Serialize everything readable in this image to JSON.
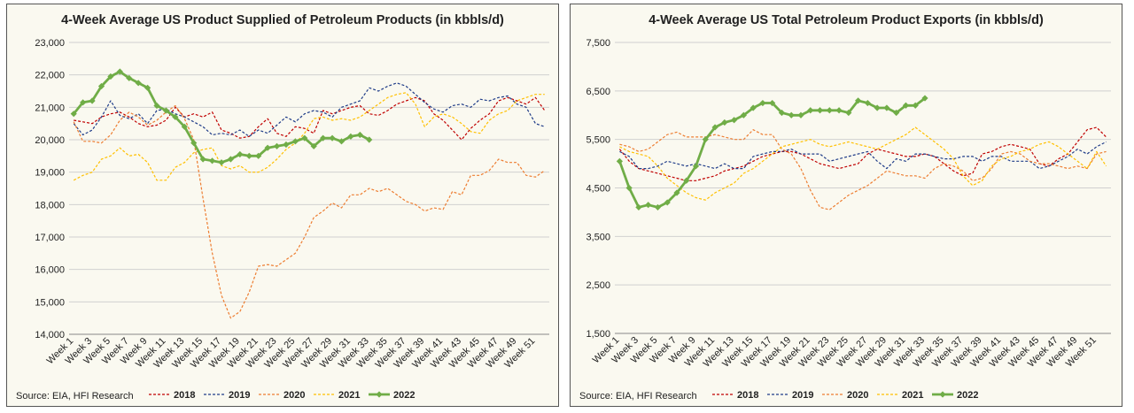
{
  "chart_data": [
    {
      "type": "line",
      "title": "4-Week Average US Product Supplied of Petroleum Products (in kbbls/d)",
      "source": "Source: EIA, HFI Research",
      "ylim": [
        14000,
        23000
      ],
      "yticks": [
        14000,
        15000,
        16000,
        17000,
        18000,
        19000,
        20000,
        21000,
        22000,
        23000
      ],
      "ytick_labels": [
        "14,000",
        "15,000",
        "16,000",
        "17,000",
        "18,000",
        "19,000",
        "20,000",
        "21,000",
        "22,000",
        "23,000"
      ],
      "x_tick_labels": [
        "Week 1",
        "Week 3",
        "Week 5",
        "Week 7",
        "Week 9",
        "Week 11",
        "Week 13",
        "Week 15",
        "Week 17",
        "Week 19",
        "Week 21",
        "Week 23",
        "Week 25",
        "Week 27",
        "Week 29",
        "Week 31",
        "Week 33",
        "Week 35",
        "Week 37",
        "Week 39",
        "Week 41",
        "Week 43",
        "Week 45",
        "Week 47",
        "Week 49",
        "Week 51"
      ],
      "grid": true,
      "legend": "bottom",
      "series": [
        {
          "name": "2018",
          "color": "#c00000",
          "dash": "3,2",
          "width": 1.2,
          "marker": false,
          "values": [
            20600,
            20550,
            20500,
            20700,
            20800,
            20850,
            20700,
            20500,
            20400,
            20450,
            20600,
            21000,
            20700,
            20800,
            20700,
            20850,
            20300,
            20200,
            20050,
            20100,
            20400,
            20650,
            20200,
            20100,
            20400,
            20350,
            20200,
            20900,
            20800,
            20900,
            21000,
            21050,
            20800,
            20750,
            20900,
            21100,
            21200,
            21300,
            21200,
            20800,
            20600,
            20300,
            20000,
            20350,
            20600,
            20800,
            21200,
            21300,
            21200,
            21100,
            21300,
            20900
          ]
        },
        {
          "name": "2019",
          "color": "#1f3c88",
          "dash": "3,2",
          "width": 1.2,
          "marker": false,
          "values": [
            20500,
            20150,
            20300,
            20700,
            21200,
            20750,
            20650,
            20800,
            20500,
            20900,
            20950,
            20800,
            20700,
            20550,
            20400,
            20150,
            20200,
            20150,
            20300,
            20100,
            20300,
            20200,
            20450,
            20700,
            20550,
            20800,
            20900,
            20850,
            20700,
            21000,
            21100,
            21200,
            21600,
            21500,
            21650,
            21750,
            21650,
            21400,
            21150,
            20950,
            20850,
            21050,
            21100,
            21000,
            21250,
            21200,
            21300,
            21350,
            21100,
            21000,
            20500,
            20400
          ]
        },
        {
          "name": "2020",
          "color": "#ed7d31",
          "dash": "3,2",
          "width": 1.2,
          "marker": false,
          "values": [
            20550,
            19950,
            19950,
            19900,
            20150,
            20600,
            20850,
            20700,
            20450,
            20600,
            20850,
            21050,
            20650,
            20000,
            18200,
            16500,
            15200,
            14500,
            14700,
            15300,
            16100,
            16150,
            16100,
            16300,
            16500,
            17000,
            17600,
            17800,
            18050,
            17900,
            18300,
            18300,
            18500,
            18400,
            18500,
            18300,
            18100,
            18000,
            17800,
            17900,
            17850,
            18400,
            18300,
            18900,
            18900,
            19050,
            19400,
            19300,
            19300,
            18900,
            18850,
            19050
          ]
        },
        {
          "name": "2021",
          "color": "#ffc000",
          "dash": "3,2",
          "width": 1.2,
          "marker": false,
          "values": [
            18750,
            18900,
            19000,
            19400,
            19500,
            19750,
            19500,
            19550,
            19300,
            18750,
            18750,
            19150,
            19300,
            19600,
            19700,
            19750,
            19200,
            19100,
            19200,
            19000,
            19000,
            19150,
            19400,
            19700,
            19900,
            20200,
            20650,
            20700,
            20600,
            20650,
            20600,
            20700,
            20900,
            21100,
            21300,
            21400,
            21450,
            21100,
            20400,
            20700,
            20800,
            20700,
            20500,
            20250,
            20200,
            20600,
            20800,
            20900,
            21200,
            21300,
            21400,
            21400
          ]
        },
        {
          "name": "2022",
          "color": "#70ad47",
          "dash": "",
          "width": 2.8,
          "marker": true,
          "values": [
            20800,
            21150,
            21200,
            21650,
            21950,
            22100,
            21900,
            21750,
            21600,
            21050,
            20900,
            20700,
            20400,
            19900,
            19400,
            19350,
            19300,
            19400,
            19550,
            19500,
            19500,
            19750,
            19800,
            19850,
            19950,
            20050,
            19800,
            20050,
            20050,
            19950,
            20100,
            20150,
            20000
          ]
        }
      ]
    },
    {
      "type": "line",
      "title": "4-Week Average US Total Petroleum Product Exports (in kbbls/d)",
      "source": "Source: EIA, HFI Research",
      "ylim": [
        1500,
        7500
      ],
      "yticks": [
        1500,
        2500,
        3500,
        4500,
        5500,
        6500,
        7500
      ],
      "ytick_labels": [
        "1,500",
        "2,500",
        "3,500",
        "4,500",
        "5,500",
        "6,500",
        "7,500"
      ],
      "x_tick_labels": [
        "Week 1",
        "Week 3",
        "Week 5",
        "Week 7",
        "Week 9",
        "Week 11",
        "Week 13",
        "Week 15",
        "Week 17",
        "Week 19",
        "Week 21",
        "Week 23",
        "Week 25",
        "Week 27",
        "Week 29",
        "Week 31",
        "Week 33",
        "Week 35",
        "Week 37",
        "Week 39",
        "Week 41",
        "Week 43",
        "Week 45",
        "Week 47",
        "Week 49",
        "Week 51"
      ],
      "grid": true,
      "legend": "bottom",
      "series": [
        {
          "name": "2018",
          "color": "#c00000",
          "dash": "3,2",
          "width": 1.2,
          "marker": false,
          "values": [
            5300,
            5050,
            4900,
            4850,
            4800,
            4750,
            4700,
            4650,
            4650,
            4700,
            4750,
            4850,
            4900,
            4950,
            5050,
            5150,
            5200,
            5250,
            5250,
            5200,
            5100,
            5000,
            4950,
            4900,
            4950,
            5000,
            5200,
            5300,
            5250,
            5200,
            5150,
            5150,
            5200,
            5150,
            5000,
            4850,
            4750,
            4800,
            5200,
            5250,
            5350,
            5400,
            5350,
            5300,
            5000,
            4950,
            5100,
            5200,
            5450,
            5700,
            5750,
            5550
          ]
        },
        {
          "name": "2019",
          "color": "#1f3c88",
          "dash": "3,2",
          "width": 1.2,
          "marker": false,
          "values": [
            5250,
            5150,
            4900,
            4900,
            4950,
            5050,
            5000,
            4950,
            5000,
            4950,
            4900,
            5000,
            4900,
            4900,
            5150,
            5200,
            5250,
            5250,
            5300,
            5200,
            5200,
            5200,
            5050,
            5100,
            5150,
            5200,
            5250,
            5050,
            4900,
            5100,
            5050,
            5200,
            5200,
            5150,
            5100,
            5100,
            5150,
            5150,
            5050,
            5150,
            5150,
            5050,
            5050,
            5050,
            4900,
            4950,
            5050,
            5150,
            5300,
            5200,
            5350,
            5450
          ]
        },
        {
          "name": "2020",
          "color": "#ed7d31",
          "dash": "3,2",
          "width": 1.2,
          "marker": false,
          "values": [
            5400,
            5350,
            5250,
            5300,
            5450,
            5600,
            5650,
            5550,
            5550,
            5550,
            5600,
            5550,
            5500,
            5500,
            5700,
            5600,
            5600,
            5300,
            5200,
            4900,
            4450,
            4100,
            4050,
            4200,
            4350,
            4450,
            4550,
            4700,
            4850,
            4800,
            4750,
            4750,
            4700,
            4900,
            5000,
            4950,
            4850,
            4650,
            4700,
            4900,
            5200,
            5250,
            5200,
            5050,
            5000,
            5000,
            4950,
            4900,
            4950,
            4900,
            5200,
            5250
          ]
        },
        {
          "name": "2021",
          "color": "#ffc000",
          "dash": "3,2",
          "width": 1.2,
          "marker": false,
          "values": [
            5350,
            5250,
            5200,
            5150,
            4950,
            4700,
            4550,
            4400,
            4300,
            4250,
            4400,
            4500,
            4600,
            4800,
            4900,
            5050,
            5200,
            5350,
            5400,
            5450,
            5500,
            5400,
            5350,
            5400,
            5450,
            5400,
            5350,
            5300,
            5400,
            5500,
            5600,
            5750,
            5600,
            5450,
            5300,
            5100,
            4750,
            4550,
            4650,
            4950,
            5100,
            5150,
            5250,
            5300,
            5400,
            5450,
            5350,
            5200,
            5050,
            4900,
            5250,
            4950
          ]
        },
        {
          "name": "2022",
          "color": "#70ad47",
          "dash": "",
          "width": 2.8,
          "marker": true,
          "values": [
            5050,
            4500,
            4100,
            4150,
            4100,
            4200,
            4400,
            4650,
            4950,
            5500,
            5750,
            5850,
            5900,
            6000,
            6150,
            6250,
            6250,
            6050,
            6000,
            6000,
            6100,
            6100,
            6100,
            6100,
            6050,
            6300,
            6250,
            6150,
            6150,
            6050,
            6200,
            6200,
            6350
          ]
        }
      ]
    }
  ]
}
